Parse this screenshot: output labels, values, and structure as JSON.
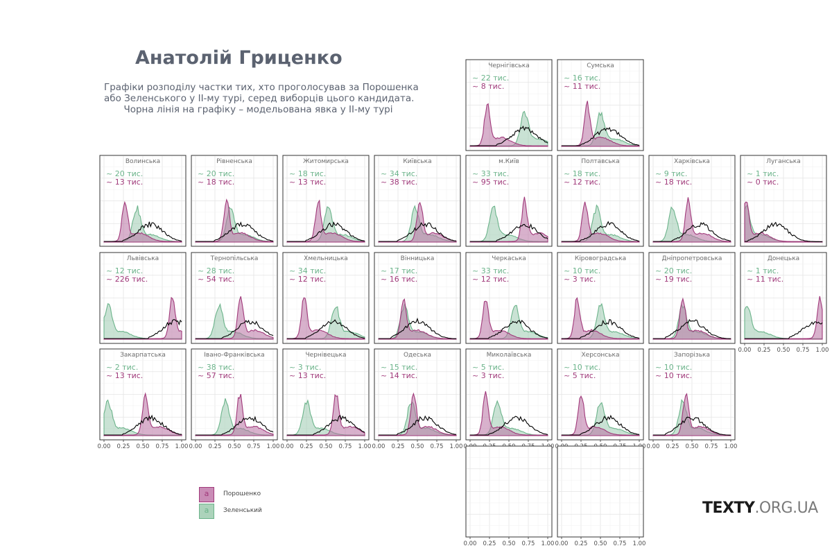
{
  "title": "Анатолій Гриценко",
  "subtitle_lines": [
    "Графіки розподілу частки тих, хто проголосував за Порошенка",
    "або Зеленського у ІІ-му турі, серед виборців цього кандидата.",
    "Чорна лінія на графіку – модельована явка у ІІ-му турі"
  ],
  "brand": {
    "main": "TEXTY",
    "domain": ".ORG.UA"
  },
  "legend": [
    {
      "label": "Порошенко",
      "color": "#a0397a",
      "fill": "#c98cb6",
      "glyph": "a"
    },
    {
      "label": "Зеленський",
      "color": "#6bb38a",
      "fill": "#acd3bb",
      "glyph": "a"
    }
  ],
  "chart_data": {
    "type": "area",
    "xlim": [
      0,
      1
    ],
    "x_ticks": [
      "0.00",
      "0.25",
      "0.50",
      "0.75",
      "1.00"
    ],
    "count_unit": "тис.",
    "series_names": [
      "Зеленський",
      "Порошенко"
    ],
    "colors": {
      "zelensky": "#6bb38a",
      "poroshenko": "#a0397a",
      "turnout": "#000000"
    },
    "panels": [
      {
        "region": "Чернігівська",
        "zelensky_k": "22",
        "poroshenko_k": "8",
        "p_peak": 0.22,
        "z_peak": 0.7,
        "bias": 0.1
      },
      {
        "region": "Сумська",
        "zelensky_k": "16",
        "poroshenko_k": "11",
        "p_peak": 0.33,
        "z_peak": 0.5,
        "bias": 0.0
      },
      {
        "region": "Волинська",
        "zelensky_k": "20",
        "poroshenko_k": "13",
        "p_peak": 0.27,
        "z_peak": 0.42,
        "bias": 0.0
      },
      {
        "region": "Рівненська",
        "zelensky_k": "20",
        "poroshenko_k": "18",
        "p_peak": 0.4,
        "z_peak": 0.45,
        "bias": 0.0
      },
      {
        "region": "Житомирська",
        "zelensky_k": "18",
        "poroshenko_k": "13",
        "p_peak": 0.4,
        "z_peak": 0.53,
        "bias": 0.0
      },
      {
        "region": "Київська",
        "zelensky_k": "34",
        "poroshenko_k": "38",
        "p_peak": 0.53,
        "z_peak": 0.47,
        "bias": 0.0
      },
      {
        "region": "м.Київ",
        "zelensky_k": "33",
        "poroshenko_k": "95",
        "p_peak": 0.7,
        "z_peak": 0.3,
        "bias": 0.1
      },
      {
        "region": "Полтавська",
        "zelensky_k": "18",
        "poroshenko_k": "12",
        "p_peak": 0.3,
        "z_peak": 0.45,
        "bias": 0.0
      },
      {
        "region": "Харківська",
        "zelensky_k": "9",
        "poroshenko_k": "18",
        "p_peak": 0.45,
        "z_peak": 0.25,
        "bias": 0.0
      },
      {
        "region": "Луганська",
        "zelensky_k": "1",
        "poroshenko_k": "0",
        "p_peak": 0.02,
        "z_peak": 0.02,
        "bias": -0.2
      },
      {
        "region": "Львівська",
        "zelensky_k": "12",
        "poroshenko_k": "226",
        "p_peak": 0.88,
        "z_peak": 0.05,
        "bias": 0.35
      },
      {
        "region": "Тернопільська",
        "zelensky_k": "28",
        "poroshenko_k": "54",
        "p_peak": 0.58,
        "z_peak": 0.3,
        "bias": 0.1
      },
      {
        "region": "Хмельницька",
        "zelensky_k": "34",
        "poroshenko_k": "12",
        "p_peak": 0.22,
        "z_peak": 0.62,
        "bias": 0.0
      },
      {
        "region": "Вінницька",
        "zelensky_k": "17",
        "poroshenko_k": "16",
        "p_peak": 0.32,
        "z_peak": 0.33,
        "bias": -0.1
      },
      {
        "region": "Черкаська",
        "zelensky_k": "33",
        "poroshenko_k": "12",
        "p_peak": 0.2,
        "z_peak": 0.58,
        "bias": 0.0
      },
      {
        "region": "Кіровоградська",
        "zelensky_k": "10",
        "poroshenko_k": "3",
        "p_peak": 0.2,
        "z_peak": 0.5,
        "bias": 0.0
      },
      {
        "region": "Дніпропетровська",
        "zelensky_k": "20",
        "poroshenko_k": "19",
        "p_peak": 0.38,
        "z_peak": 0.38,
        "bias": -0.1
      },
      {
        "region": "Донецька",
        "zelensky_k": "1",
        "poroshenko_k": "11",
        "p_peak": 0.97,
        "z_peak": 0.03,
        "bias": 0.4
      },
      {
        "region": "Закарпатська",
        "zelensky_k": "2",
        "poroshenko_k": "13",
        "p_peak": 0.53,
        "z_peak": 0.05,
        "bias": 0.0
      },
      {
        "region": "Івано-Франківська",
        "zelensky_k": "38",
        "poroshenko_k": "57",
        "p_peak": 0.57,
        "z_peak": 0.38,
        "bias": 0.1
      },
      {
        "region": "Чернівецька",
        "zelensky_k": "3",
        "poroshenko_k": "13",
        "p_peak": 0.63,
        "z_peak": 0.25,
        "bias": 0.1
      },
      {
        "region": "Одеська",
        "zelensky_k": "15",
        "poroshenko_k": "14",
        "p_peak": 0.45,
        "z_peak": 0.42,
        "bias": 0.0
      },
      {
        "region": "Миколаївська",
        "zelensky_k": "5",
        "poroshenko_k": "3",
        "p_peak": 0.2,
        "z_peak": 0.35,
        "bias": 0.0
      },
      {
        "region": "Херсонська",
        "zelensky_k": "10",
        "poroshenko_k": "5",
        "p_peak": 0.25,
        "z_peak": 0.5,
        "bias": 0.0
      },
      {
        "region": "Запорізька",
        "zelensky_k": "10",
        "poroshenko_k": "10",
        "p_peak": 0.42,
        "z_peak": 0.38,
        "bias": -0.1
      },
      {
        "region": "",
        "empty": true
      },
      {
        "region": "",
        "empty": true
      }
    ]
  }
}
